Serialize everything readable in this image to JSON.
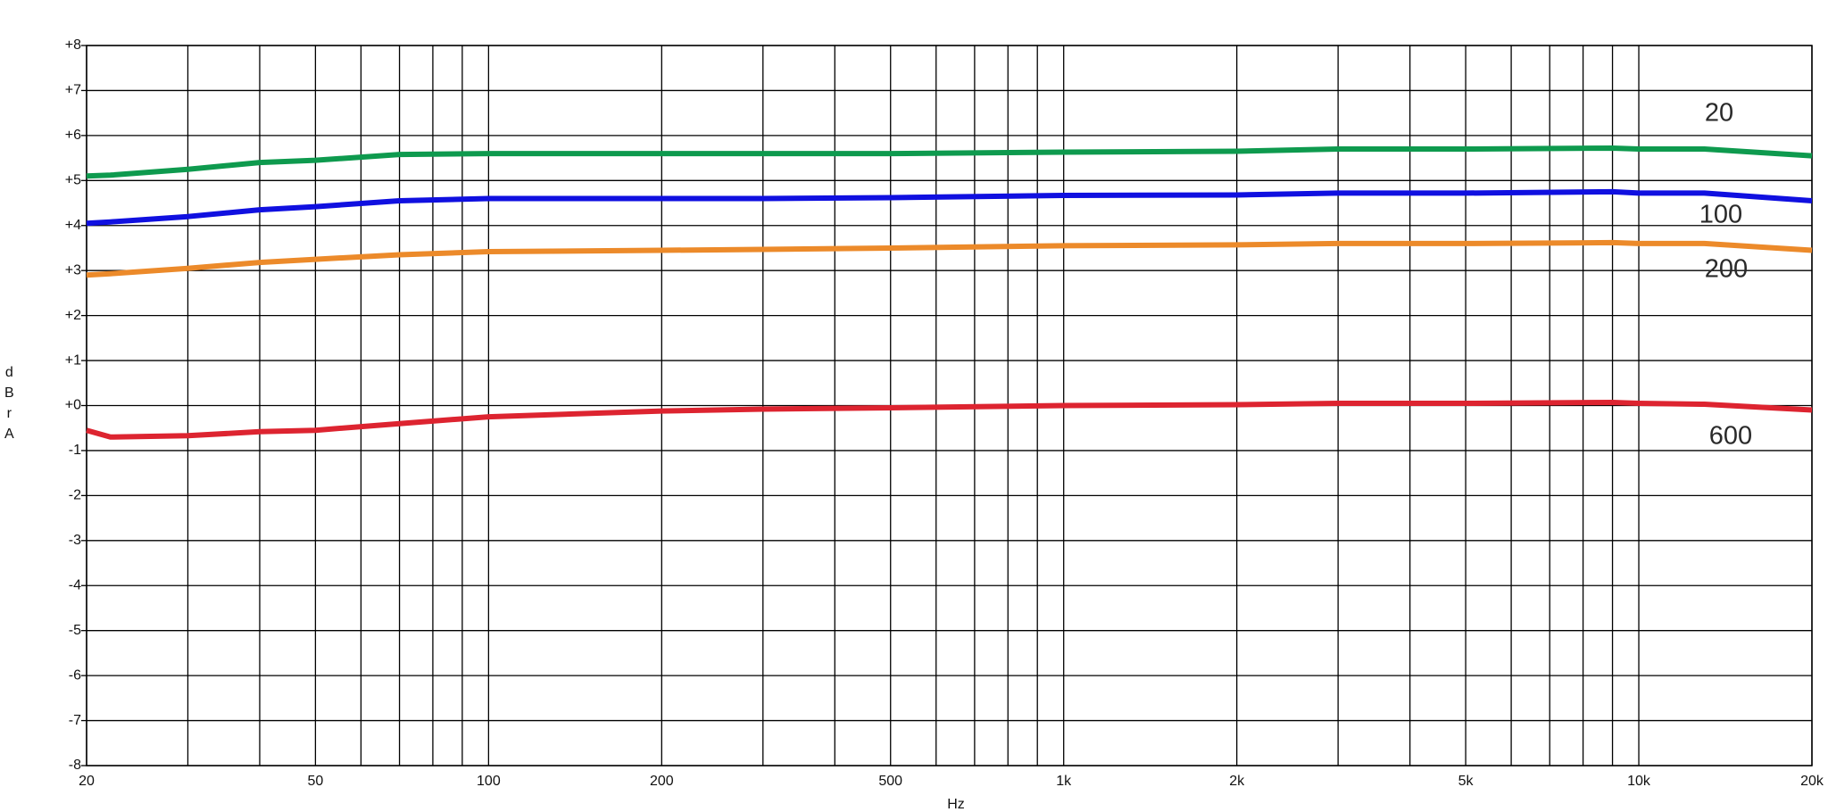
{
  "chart_data": {
    "type": "line",
    "y_label": "dBrA",
    "x_label": "Hz",
    "log_x": true,
    "grid": true,
    "xlim": [
      20,
      20000
    ],
    "ylim": [
      -8,
      8
    ],
    "xticks": [
      20,
      50,
      100,
      200,
      500,
      {
        "value": 1000,
        "label": "1k"
      },
      {
        "value": 2000,
        "label": "2k"
      },
      {
        "value": 5000,
        "label": "5k"
      },
      {
        "value": 10000,
        "label": "10k"
      },
      {
        "value": 20000,
        "label": "20k"
      }
    ],
    "x_minor_grid": [
      30,
      40,
      60,
      70,
      80,
      90,
      300,
      400,
      600,
      700,
      800,
      900,
      3000,
      4000,
      6000,
      7000,
      8000,
      9000
    ],
    "yticks": [
      {
        "value": 8,
        "label": "+8"
      },
      {
        "value": 7,
        "label": "+7"
      },
      {
        "value": 6,
        "label": "+6"
      },
      {
        "value": 5,
        "label": "+5"
      },
      {
        "value": 4,
        "label": "+4"
      },
      {
        "value": 3,
        "label": "+3"
      },
      {
        "value": 2,
        "label": "+2"
      },
      {
        "value": 1,
        "label": "+1"
      },
      {
        "value": 0,
        "label": "+0"
      },
      -1,
      -2,
      -3,
      -4,
      -5,
      -6,
      -7,
      -8
    ],
    "x": [
      20,
      22,
      30,
      40,
      50,
      70,
      100,
      200,
      300,
      500,
      1000,
      2000,
      3000,
      5000,
      9000,
      10000,
      13000,
      20000
    ],
    "series": [
      {
        "name": "20",
        "color": "#0e9a4e",
        "values": [
          5.1,
          5.12,
          5.25,
          5.4,
          5.45,
          5.58,
          5.6,
          5.6,
          5.6,
          5.6,
          5.63,
          5.65,
          5.7,
          5.7,
          5.72,
          5.7,
          5.7,
          5.55
        ]
      },
      {
        "name": "100",
        "color": "#1010e0",
        "values": [
          4.05,
          4.08,
          4.2,
          4.35,
          4.42,
          4.55,
          4.6,
          4.6,
          4.6,
          4.62,
          4.67,
          4.68,
          4.72,
          4.72,
          4.75,
          4.72,
          4.72,
          4.55
        ]
      },
      {
        "name": "200",
        "color": "#ec8a2a",
        "values": [
          2.9,
          2.93,
          3.05,
          3.18,
          3.25,
          3.35,
          3.42,
          3.45,
          3.47,
          3.5,
          3.55,
          3.57,
          3.6,
          3.6,
          3.62,
          3.6,
          3.6,
          3.45
        ]
      },
      {
        "name": "600",
        "color": "#dd2430",
        "values": [
          -0.55,
          -0.7,
          -0.67,
          -0.58,
          -0.55,
          -0.4,
          -0.25,
          -0.12,
          -0.08,
          -0.05,
          0,
          0.02,
          0.05,
          0.05,
          0.07,
          0.05,
          0.03,
          -0.1
        ]
      }
    ]
  }
}
